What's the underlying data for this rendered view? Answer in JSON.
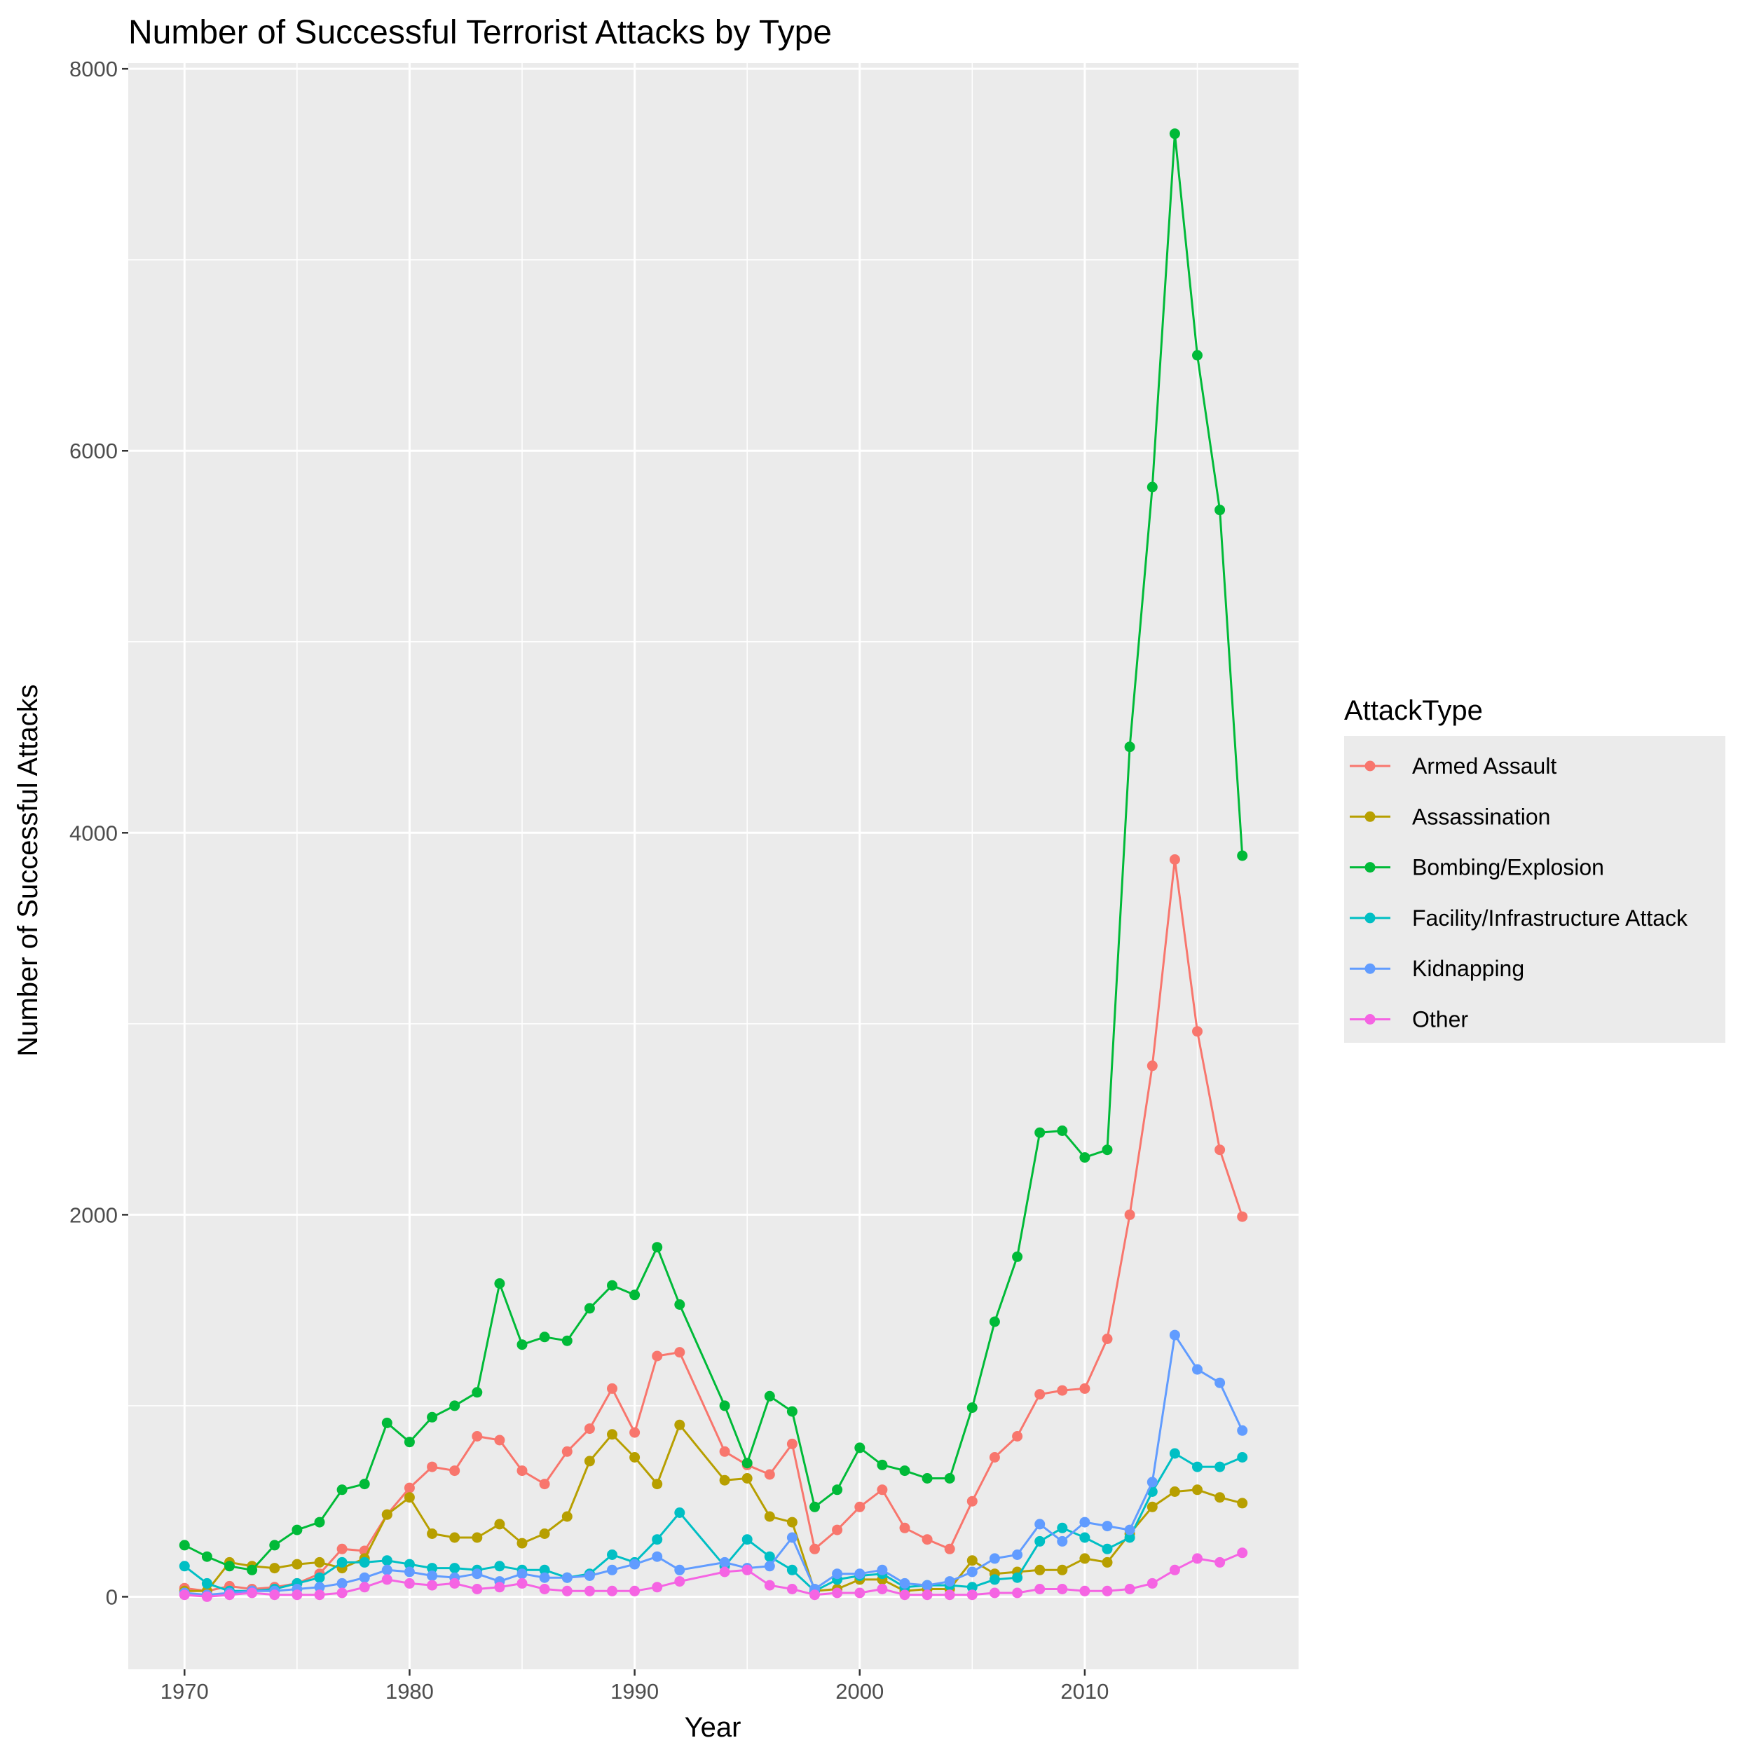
{
  "chart_data": {
    "type": "line",
    "title": "Number of Successful Terrorist Attacks by Type",
    "xlabel": "Year",
    "ylabel": "Number of Successful Attacks",
    "xlim": [
      1967.5,
      2019.5
    ],
    "ylim": [
      -380,
      8030
    ],
    "x_ticks": [
      1970,
      1980,
      1990,
      2000,
      2010
    ],
    "y_ticks": [
      0,
      2000,
      4000,
      6000,
      8000
    ],
    "grid": true,
    "panel_background": "#ebebeb",
    "legend": {
      "title": "AttackType",
      "position": "right"
    },
    "series": [
      {
        "name": "Armed Assault",
        "color": "#F8766D",
        "x": [
          1970,
          1971,
          1972,
          1973,
          1974,
          1975,
          1976,
          1977,
          1978,
          1979,
          1980,
          1981,
          1982,
          1983,
          1984,
          1985,
          1986,
          1987,
          1988,
          1989,
          1990,
          1991,
          1992,
          1994,
          1995,
          1996,
          1997,
          1998,
          1999,
          2000,
          2001,
          2002,
          2003,
          2004,
          2005,
          2006,
          2007,
          2008,
          2009,
          2010,
          2011,
          2012,
          2013,
          2014,
          2015,
          2016,
          2017
        ],
        "y": [
          45,
          30,
          55,
          40,
          50,
          70,
          120,
          250,
          240,
          430,
          570,
          680,
          660,
          840,
          820,
          660,
          590,
          760,
          880,
          1090,
          860,
          1260,
          1280,
          760,
          690,
          640,
          800,
          250,
          350,
          470,
          560,
          360,
          300,
          250,
          500,
          730,
          840,
          1060,
          1080,
          1090,
          1350,
          2000,
          2780,
          3860,
          2960,
          2340,
          1990
        ]
      },
      {
        "name": "Assassination",
        "color": "#B79F00",
        "x": [
          1970,
          1971,
          1972,
          1973,
          1974,
          1975,
          1976,
          1977,
          1978,
          1979,
          1980,
          1981,
          1982,
          1983,
          1984,
          1985,
          1986,
          1987,
          1988,
          1989,
          1990,
          1991,
          1992,
          1994,
          1995,
          1996,
          1997,
          1998,
          1999,
          2000,
          2001,
          2002,
          2003,
          2004,
          2005,
          2006,
          2007,
          2008,
          2009,
          2010,
          2011,
          2012,
          2013,
          2014,
          2015,
          2016,
          2017
        ],
        "y": [
          30,
          30,
          180,
          160,
          150,
          170,
          180,
          150,
          200,
          430,
          520,
          330,
          310,
          310,
          380,
          280,
          330,
          420,
          710,
          850,
          730,
          590,
          900,
          610,
          620,
          420,
          390,
          30,
          40,
          90,
          90,
          30,
          40,
          40,
          190,
          120,
          130,
          140,
          140,
          200,
          180,
          330,
          470,
          550,
          560,
          520,
          490
        ]
      },
      {
        "name": "Bombing/Explosion",
        "color": "#00BA38",
        "x": [
          1970,
          1971,
          1972,
          1973,
          1974,
          1975,
          1976,
          1977,
          1978,
          1979,
          1980,
          1981,
          1982,
          1983,
          1984,
          1985,
          1986,
          1987,
          1988,
          1989,
          1990,
          1991,
          1992,
          1994,
          1995,
          1996,
          1997,
          1998,
          1999,
          2000,
          2001,
          2002,
          2003,
          2004,
          2005,
          2006,
          2007,
          2008,
          2009,
          2010,
          2011,
          2012,
          2013,
          2014,
          2015,
          2016,
          2017
        ],
        "y": [
          270,
          210,
          160,
          140,
          270,
          350,
          390,
          560,
          590,
          910,
          810,
          940,
          1000,
          1070,
          1640,
          1320,
          1360,
          1340,
          1510,
          1630,
          1580,
          1830,
          1530,
          1000,
          700,
          1050,
          970,
          470,
          560,
          780,
          690,
          660,
          620,
          620,
          990,
          1440,
          1780,
          2430,
          2440,
          2300,
          2340,
          4450,
          5810,
          7660,
          6500,
          5690,
          3880
        ]
      },
      {
        "name": "Facility/Infrastructure Attack",
        "color": "#00BFC4",
        "x": [
          1970,
          1971,
          1972,
          1973,
          1974,
          1975,
          1976,
          1977,
          1978,
          1979,
          1980,
          1981,
          1982,
          1983,
          1984,
          1985,
          1986,
          1987,
          1988,
          1989,
          1990,
          1991,
          1992,
          1994,
          1995,
          1996,
          1997,
          1998,
          1999,
          2000,
          2001,
          2002,
          2003,
          2004,
          2005,
          2006,
          2007,
          2008,
          2009,
          2010,
          2011,
          2012,
          2013,
          2014,
          2015,
          2016,
          2017
        ],
        "y": [
          160,
          70,
          30,
          30,
          40,
          70,
          100,
          180,
          180,
          190,
          170,
          150,
          150,
          140,
          160,
          140,
          140,
          100,
          120,
          220,
          180,
          300,
          440,
          160,
          300,
          210,
          140,
          30,
          90,
          110,
          120,
          50,
          60,
          60,
          50,
          90,
          100,
          290,
          360,
          310,
          250,
          310,
          550,
          750,
          680,
          680,
          730
        ]
      },
      {
        "name": "Kidnapping",
        "color": "#619CFF",
        "x": [
          1970,
          1971,
          1972,
          1973,
          1974,
          1975,
          1976,
          1977,
          1978,
          1979,
          1980,
          1981,
          1982,
          1983,
          1984,
          1985,
          1986,
          1987,
          1988,
          1989,
          1990,
          1991,
          1992,
          1994,
          1995,
          1996,
          1997,
          1998,
          1999,
          2000,
          2001,
          2002,
          2003,
          2004,
          2005,
          2006,
          2007,
          2008,
          2009,
          2010,
          2011,
          2012,
          2013,
          2014,
          2015,
          2016,
          2017
        ],
        "y": [
          20,
          10,
          20,
          30,
          30,
          40,
          50,
          70,
          100,
          140,
          130,
          110,
          100,
          120,
          80,
          120,
          100,
          100,
          110,
          140,
          170,
          210,
          140,
          180,
          150,
          160,
          310,
          40,
          120,
          120,
          140,
          70,
          60,
          80,
          130,
          200,
          220,
          380,
          290,
          390,
          370,
          350,
          600,
          1370,
          1190,
          1120,
          870
        ]
      },
      {
        "name": "Other",
        "color": "#F564E3",
        "x": [
          1970,
          1971,
          1972,
          1973,
          1974,
          1975,
          1976,
          1977,
          1978,
          1979,
          1980,
          1981,
          1982,
          1983,
          1984,
          1985,
          1986,
          1987,
          1988,
          1989,
          1990,
          1991,
          1992,
          1994,
          1995,
          1996,
          1997,
          1998,
          1999,
          2000,
          2001,
          2002,
          2003,
          2004,
          2005,
          2006,
          2007,
          2008,
          2009,
          2010,
          2011,
          2012,
          2013,
          2014,
          2015,
          2016,
          2017
        ],
        "y": [
          10,
          0,
          10,
          20,
          10,
          10,
          10,
          20,
          50,
          90,
          70,
          60,
          70,
          40,
          50,
          70,
          40,
          30,
          30,
          30,
          30,
          50,
          80,
          130,
          140,
          60,
          40,
          10,
          20,
          20,
          40,
          10,
          10,
          10,
          10,
          20,
          20,
          40,
          40,
          30,
          30,
          40,
          70,
          140,
          200,
          180,
          230
        ]
      }
    ]
  }
}
